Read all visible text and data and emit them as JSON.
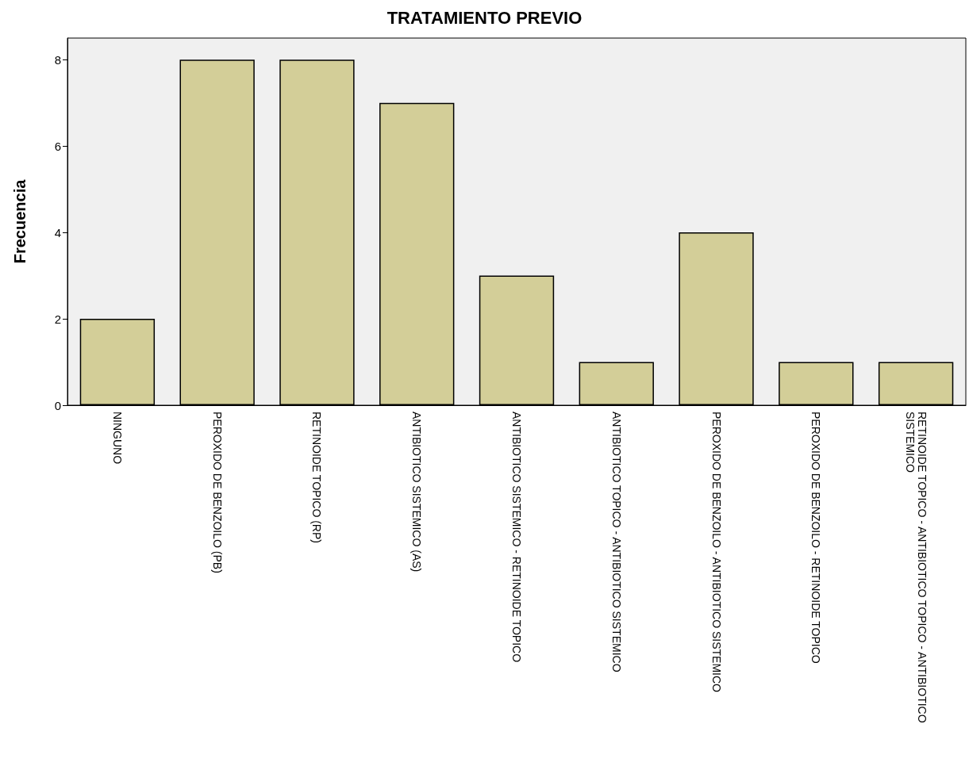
{
  "chart_data": {
    "type": "bar",
    "title": "TRATAMIENTO PREVIO",
    "ylabel": "Frecuencia",
    "categories": [
      "NINGUNO",
      "PEROXIDO DE BENZOILO (PB)",
      "RETINOIDE TOPICO (RP)",
      "ANTIBIOTICO SISTEMICO (AS)",
      "ANTIBIOTICO SISTEMICO - RETINOIDE TOPICO",
      "ANTIBIOTICO TOPICO - ANTIBIOTICO SISTEMICO",
      "PEROXIDO DE BENZOILO - ANTIBIOTICO SISTEMICO",
      "PEROXIDO DE BENZOILO - RETINOIDE TOPICO",
      "RETINOIDE TOPICO - ANTIBIOTICO TOPICO - ANTIBIOTICO SISTEMICO"
    ],
    "values": [
      2,
      8,
      8,
      7,
      3,
      1,
      4,
      1,
      1
    ],
    "color": "#d3ce98",
    "ylim": [
      0,
      8.5
    ],
    "yticks": [
      0,
      2,
      4,
      6,
      8
    ]
  }
}
